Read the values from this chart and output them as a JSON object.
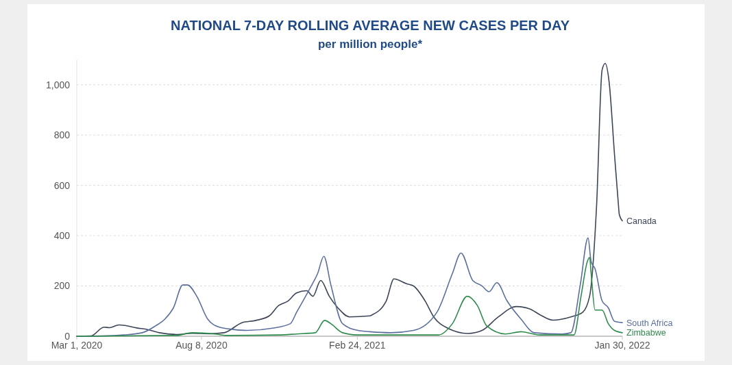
{
  "chart_data": {
    "type": "line",
    "title": "NATIONAL 7-DAY ROLLING AVERAGE NEW CASES PER DAY",
    "subtitle": "per million people*",
    "xlim": [
      "2020-03-01",
      "2022-01-30"
    ],
    "xticks": [
      {
        "value": "2020-03-01",
        "label": "Mar 1, 2020"
      },
      {
        "value": "2020-08-08",
        "label": "Aug 8, 2020"
      },
      {
        "value": "2021-02-24",
        "label": "Feb 24, 2021"
      },
      {
        "value": "2022-01-30",
        "label": "Jan 30, 2022"
      }
    ],
    "ylim": [
      0,
      1100
    ],
    "yticks": [
      0,
      200,
      400,
      600,
      800,
      {
        "value": 1000,
        "label": "1,000"
      }
    ],
    "grid": "y",
    "legend": false,
    "series": [
      {
        "name": "Canada",
        "color": "#3b4556",
        "x": [
          "2020-03-01",
          "2020-03-19",
          "2020-04-05",
          "2020-04-12",
          "2020-04-24",
          "2020-05-02",
          "2020-05-17",
          "2020-05-29",
          "2020-06-15",
          "2020-07-07",
          "2020-07-27",
          "2020-08-19",
          "2020-09-06",
          "2020-09-29",
          "2020-10-17",
          "2020-11-03",
          "2020-11-15",
          "2020-11-27",
          "2020-12-08",
          "2020-12-21",
          "2020-12-29",
          "2021-01-08",
          "2021-01-19",
          "2021-01-30",
          "2021-02-14",
          "2021-03-12",
          "2021-03-15",
          "2021-04-02",
          "2021-04-12",
          "2021-04-28",
          "2021-05-07",
          "2021-05-22",
          "2021-06-02",
          "2021-06-20",
          "2021-07-16",
          "2021-08-03",
          "2021-08-24",
          "2021-09-16",
          "2021-10-03",
          "2021-10-16",
          "2021-11-02",
          "2021-11-25",
          "2021-12-10",
          "2021-12-19",
          "2021-12-28",
          "2022-01-04",
          "2022-01-08",
          "2022-01-13",
          "2022-01-20",
          "2022-01-25",
          "2022-01-26",
          "2022-01-30"
        ],
        "values": [
          0,
          1,
          36,
          34,
          45,
          43,
          33,
          28,
          14,
          7,
          12,
          10,
          14,
          54,
          63,
          81,
          122,
          140,
          172,
          181,
          159,
          222,
          159,
          113,
          77,
          81,
          85,
          140,
          228,
          209,
          200,
          140,
          77,
          32,
          11,
          23,
          77,
          118,
          109,
          86,
          64,
          77,
          95,
          159,
          522,
          1058,
          1085,
          1012,
          721,
          522,
          486,
          459
        ]
      },
      {
        "name": "South Africa",
        "color": "#5b6f9c",
        "x": [
          "2020-03-01",
          "2020-04-03",
          "2020-04-30",
          "2020-05-24",
          "2020-06-10",
          "2020-06-22",
          "2020-07-03",
          "2020-07-15",
          "2020-07-21",
          "2020-08-02",
          "2020-08-16",
          "2020-08-31",
          "2020-09-18",
          "2020-10-05",
          "2020-11-07",
          "2020-11-30",
          "2020-12-08",
          "2020-12-26",
          "2021-01-04",
          "2021-01-12",
          "2021-01-21",
          "2021-02-05",
          "2021-02-25",
          "2021-03-12",
          "2021-04-08",
          "2021-05-07",
          "2021-06-06",
          "2021-06-26",
          "2021-07-07",
          "2021-07-22",
          "2021-08-03",
          "2021-08-12",
          "2021-08-22",
          "2021-09-04",
          "2021-09-22",
          "2021-10-09",
          "2021-11-14",
          "2021-11-25",
          "2021-12-07",
          "2021-12-17",
          "2021-12-21",
          "2021-12-26",
          "2022-01-04",
          "2022-01-12",
          "2022-01-20",
          "2022-01-30"
        ],
        "values": [
          0,
          1,
          5,
          14,
          41,
          68,
          113,
          204,
          204,
          159,
          68,
          36,
          27,
          23,
          32,
          50,
          95,
          195,
          249,
          318,
          204,
          50,
          23,
          18,
          14,
          23,
          95,
          250,
          331,
          222,
          200,
          177,
          213,
          141,
          68,
          14,
          9,
          14,
          204,
          391,
          296,
          268,
          141,
          113,
          59,
          54
        ]
      },
      {
        "name": "Zimbabwe",
        "color": "#2e8b4c",
        "x": [
          "2020-03-01",
          "2020-07-07",
          "2020-07-27",
          "2020-08-25",
          "2020-09-11",
          "2020-11-15",
          "2020-12-08",
          "2021-01-01",
          "2021-01-13",
          "2021-01-21",
          "2021-02-05",
          "2021-02-25",
          "2021-04-23",
          "2021-06-08",
          "2021-06-26",
          "2021-07-15",
          "2021-07-28",
          "2021-08-09",
          "2021-09-02",
          "2021-09-22",
          "2021-10-16",
          "2021-11-29",
          "2021-12-08",
          "2021-12-16",
          "2021-12-19",
          "2021-12-21",
          "2021-12-26",
          "2022-01-04",
          "2022-01-12",
          "2022-01-20",
          "2022-01-30"
        ],
        "values": [
          0,
          3,
          14,
          9,
          3,
          5,
          9,
          14,
          63,
          50,
          14,
          5,
          5,
          5,
          50,
          159,
          122,
          41,
          9,
          18,
          5,
          5,
          159,
          296,
          314,
          249,
          104,
          104,
          50,
          23,
          14
        ]
      }
    ]
  }
}
